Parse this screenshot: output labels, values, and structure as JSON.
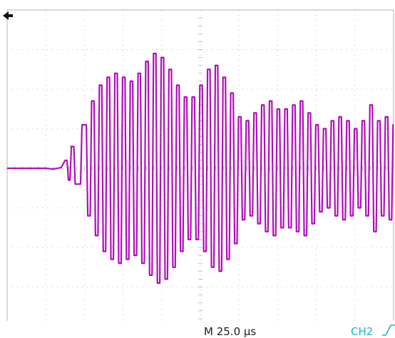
{
  "display": {
    "background": "#ffffff",
    "grid_color": "#b4b4b4",
    "divisions": {
      "horizontal": 10,
      "vertical": 8
    },
    "trace_color": "#b00fb8"
  },
  "trigger_marker": {
    "icon": "trigger-position-arrow-icon",
    "glyph": "➜"
  },
  "status_bar": {
    "timebase": "M 25.0 µs",
    "trigger_source": "CH2",
    "trigger_slope_icon": "rising-edge-icon",
    "colors": {
      "timebase": "#222222",
      "trigger": "#19b5c8"
    }
  },
  "chart_data": {
    "type": "line",
    "title": "",
    "series": [
      {
        "name": "",
        "description_units": "divisions",
        "x": [
          0,
          0.5,
          1,
          1.2,
          1.4,
          1.5,
          1.6,
          1.65,
          1.8,
          2.0,
          2.1,
          2.2,
          2.3,
          2.4,
          2.5,
          2.6,
          2.7,
          2.8,
          2.9,
          3.0,
          3.1,
          3.2,
          3.3,
          3.4,
          3.5,
          3.6,
          3.7,
          3.8,
          3.9,
          4.0,
          4.1,
          4.2,
          4.3,
          4.4,
          4.5,
          4.6,
          4.7,
          4.8,
          4.9,
          5.0,
          5.1,
          5.2,
          5.3,
          5.4,
          5.5,
          5.6,
          5.7,
          5.8,
          5.9,
          6.0,
          6.1,
          6.2,
          6.3,
          6.4,
          6.5,
          6.6,
          6.7,
          6.8,
          6.9,
          7.0,
          7.1,
          7.2,
          7.3,
          7.4,
          7.5,
          7.6,
          7.7,
          7.8,
          7.9,
          8.0,
          8.1,
          8.2,
          8.3,
          8.4,
          8.5,
          8.6,
          8.7,
          8.8,
          8.9,
          9.0,
          9.1,
          9.2,
          9.3,
          9.4,
          9.5,
          9.6,
          9.7,
          9.8,
          9.9,
          10.0
        ],
        "y": [
          0.0,
          0.0,
          0.0,
          -0.02,
          0.02,
          0.2,
          -0.3,
          0.55,
          -0.4,
          1.1,
          -1.2,
          1.7,
          -1.7,
          2.1,
          -2.1,
          2.3,
          -2.3,
          2.4,
          -2.4,
          2.3,
          -2.3,
          2.2,
          -2.2,
          2.4,
          -2.4,
          2.7,
          -2.7,
          2.9,
          -2.9,
          2.8,
          -2.8,
          2.5,
          -2.5,
          2.1,
          -2.1,
          1.8,
          -1.8,
          1.8,
          -1.8,
          2.1,
          -2.1,
          2.5,
          -2.5,
          2.6,
          -2.6,
          2.3,
          -2.3,
          1.9,
          -1.9,
          1.3,
          -1.3,
          1.2,
          -1.2,
          1.4,
          -1.4,
          1.6,
          -1.6,
          1.7,
          -1.7,
          1.5,
          -1.5,
          1.5,
          -1.5,
          1.6,
          -1.6,
          1.7,
          -1.7,
          1.4,
          -1.4,
          1.1,
          -1.1,
          1.0,
          -1.0,
          1.2,
          -1.2,
          1.3,
          -1.3,
          1.2,
          -1.2,
          1.0,
          -1.0,
          1.2,
          -1.2,
          1.6,
          -1.6,
          1.2,
          -1.2,
          1.3,
          -1.3,
          1.1
        ]
      }
    ],
    "xlim": [
      0,
      10
    ],
    "ylim": [
      -4,
      4
    ],
    "grid": true
  }
}
